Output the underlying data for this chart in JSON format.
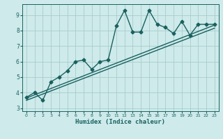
{
  "title": "",
  "xlabel": "Humidex (Indice chaleur)",
  "ylabel": "",
  "bg_color": "#ceeaea",
  "grid_color": "#aacccc",
  "line_color": "#1a6060",
  "xlim": [
    -0.5,
    23.5
  ],
  "ylim": [
    2.8,
    9.7
  ],
  "xticks": [
    0,
    1,
    2,
    3,
    4,
    5,
    6,
    7,
    8,
    9,
    10,
    11,
    12,
    13,
    14,
    15,
    16,
    17,
    18,
    19,
    20,
    21,
    22,
    23
  ],
  "yticks": [
    3,
    4,
    5,
    6,
    7,
    8,
    9
  ],
  "line1_x": [
    0,
    1,
    2,
    3,
    4,
    5,
    6,
    7,
    8,
    9,
    10,
    11,
    12,
    13,
    14,
    15,
    16,
    17,
    18,
    19,
    20,
    21,
    22,
    23
  ],
  "line1_y": [
    3.7,
    4.0,
    3.5,
    4.7,
    5.0,
    5.4,
    6.0,
    6.1,
    5.5,
    6.0,
    6.1,
    8.3,
    9.3,
    7.9,
    7.9,
    9.3,
    8.4,
    8.2,
    7.8,
    8.6,
    7.7,
    8.4,
    8.4,
    8.4
  ],
  "line2_x": [
    0,
    23
  ],
  "line2_y": [
    3.65,
    8.35
  ],
  "line3_x": [
    0,
    23
  ],
  "line3_y": [
    3.5,
    8.15
  ],
  "marker": "D",
  "markersize": 2.5,
  "linewidth": 1.0
}
